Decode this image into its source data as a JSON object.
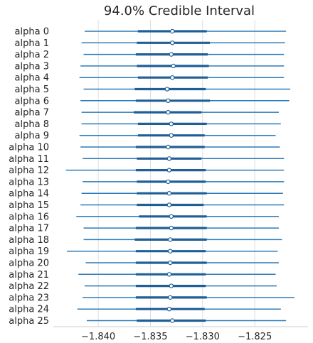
{
  "chart_data": {
    "type": "forest",
    "title": "94.0% Credible Interval",
    "xlabel": "",
    "ylabel": "",
    "xlim": [
      -1.8443,
      -1.8199
    ],
    "x_ticks": [
      -1.84,
      -1.835,
      -1.83,
      -1.825
    ],
    "x_tick_labels": [
      "−1.840",
      "−1.835",
      "−1.830",
      "−1.825"
    ],
    "grid": "vertical",
    "colors": {
      "line": "#2b7bba",
      "iqr": "#1f5f96",
      "marker_face": "#ffffff",
      "grid": "#dddddd",
      "spine": "#cccccc"
    },
    "rows": [
      {
        "label": "alpha 0",
        "hdi_low": -1.8413,
        "iqr_low": -1.8362,
        "mean": -1.8329,
        "iqr_high": -1.8296,
        "hdi_high": -1.822
      },
      {
        "label": "alpha 1",
        "hdi_low": -1.8416,
        "iqr_low": -1.8363,
        "mean": -1.8329,
        "iqr_high": -1.8293,
        "hdi_high": -1.8221
      },
      {
        "label": "alpha 2",
        "hdi_low": -1.8414,
        "iqr_low": -1.8364,
        "mean": -1.833,
        "iqr_high": -1.8295,
        "hdi_high": -1.8222
      },
      {
        "label": "alpha 3",
        "hdi_low": -1.8417,
        "iqr_low": -1.8363,
        "mean": -1.8328,
        "iqr_high": -1.8294,
        "hdi_high": -1.8222
      },
      {
        "label": "alpha 4",
        "hdi_low": -1.8418,
        "iqr_low": -1.8362,
        "mean": -1.8329,
        "iqr_high": -1.8295,
        "hdi_high": -1.8222
      },
      {
        "label": "alpha 5",
        "hdi_low": -1.8414,
        "iqr_low": -1.8365,
        "mean": -1.8334,
        "iqr_high": -1.8297,
        "hdi_high": -1.8216
      },
      {
        "label": "alpha 6",
        "hdi_low": -1.8417,
        "iqr_low": -1.8364,
        "mean": -1.8333,
        "iqr_high": -1.8293,
        "hdi_high": -1.8217
      },
      {
        "label": "alpha 7",
        "hdi_low": -1.8416,
        "iqr_low": -1.8366,
        "mean": -1.8333,
        "iqr_high": -1.8301,
        "hdi_high": -1.8227
      },
      {
        "label": "alpha 8",
        "hdi_low": -1.8416,
        "iqr_low": -1.8362,
        "mean": -1.833,
        "iqr_high": -1.8296,
        "hdi_high": -1.8225
      },
      {
        "label": "alpha 9",
        "hdi_low": -1.8418,
        "iqr_low": -1.8362,
        "mean": -1.833,
        "iqr_high": -1.8298,
        "hdi_high": -1.823
      },
      {
        "label": "alpha 10",
        "hdi_low": -1.8417,
        "iqr_low": -1.8364,
        "mean": -1.8333,
        "iqr_high": -1.8298,
        "hdi_high": -1.8226
      },
      {
        "label": "alpha 11",
        "hdi_low": -1.8415,
        "iqr_low": -1.8363,
        "mean": -1.8332,
        "iqr_high": -1.8301,
        "hdi_high": -1.8222
      },
      {
        "label": "alpha 12",
        "hdi_low": -1.8431,
        "iqr_low": -1.8364,
        "mean": -1.8332,
        "iqr_high": -1.8297,
        "hdi_high": -1.8222
      },
      {
        "label": "alpha 13",
        "hdi_low": -1.8415,
        "iqr_low": -1.8363,
        "mean": -1.8333,
        "iqr_high": -1.8297,
        "hdi_high": -1.8222
      },
      {
        "label": "alpha 14",
        "hdi_low": -1.8416,
        "iqr_low": -1.8363,
        "mean": -1.8332,
        "iqr_high": -1.8296,
        "hdi_high": -1.8223
      },
      {
        "label": "alpha 15",
        "hdi_low": -1.8417,
        "iqr_low": -1.8363,
        "mean": -1.8332,
        "iqr_high": -1.8299,
        "hdi_high": -1.8222
      },
      {
        "label": "alpha 16",
        "hdi_low": -1.8421,
        "iqr_low": -1.8361,
        "mean": -1.833,
        "iqr_high": -1.8296,
        "hdi_high": -1.8227
      },
      {
        "label": "alpha 17",
        "hdi_low": -1.8414,
        "iqr_low": -1.8364,
        "mean": -1.833,
        "iqr_high": -1.8296,
        "hdi_high": -1.8227
      },
      {
        "label": "alpha 18",
        "hdi_low": -1.8414,
        "iqr_low": -1.8365,
        "mean": -1.8331,
        "iqr_high": -1.8296,
        "hdi_high": -1.8224
      },
      {
        "label": "alpha 19",
        "hdi_low": -1.843,
        "iqr_low": -1.8364,
        "mean": -1.8331,
        "iqr_high": -1.8297,
        "hdi_high": -1.8228
      },
      {
        "label": "alpha 20",
        "hdi_low": -1.8412,
        "iqr_low": -1.8364,
        "mean": -1.8331,
        "iqr_high": -1.8296,
        "hdi_high": -1.8227
      },
      {
        "label": "alpha 21",
        "hdi_low": -1.8419,
        "iqr_low": -1.8364,
        "mean": -1.8332,
        "iqr_high": -1.8297,
        "hdi_high": -1.823
      },
      {
        "label": "alpha 22",
        "hdi_low": -1.8413,
        "iqr_low": -1.8364,
        "mean": -1.833,
        "iqr_high": -1.8297,
        "hdi_high": -1.8229
      },
      {
        "label": "alpha 23",
        "hdi_low": -1.8415,
        "iqr_low": -1.8364,
        "mean": -1.8331,
        "iqr_high": -1.8296,
        "hdi_high": -1.8212
      },
      {
        "label": "alpha 24",
        "hdi_low": -1.842,
        "iqr_low": -1.8364,
        "mean": -1.8332,
        "iqr_high": -1.8298,
        "hdi_high": -1.8225
      },
      {
        "label": "alpha 25",
        "hdi_low": -1.8411,
        "iqr_low": -1.8363,
        "mean": -1.8329,
        "iqr_high": -1.8297,
        "hdi_high": -1.822
      }
    ]
  }
}
